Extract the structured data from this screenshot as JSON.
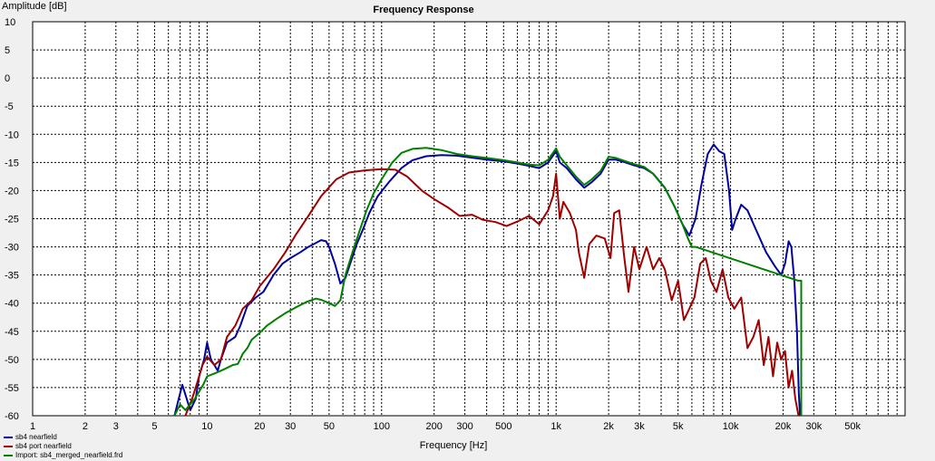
{
  "chart_data": {
    "type": "line",
    "title": "Frequency Response",
    "xlabel": "Frequency [Hz]",
    "ylabel": "Amplitude [dB]",
    "xscale": "log",
    "xlim": [
      1,
      100000
    ],
    "ylim": [
      -60,
      10
    ],
    "grid": true,
    "legend_position": "bottom-left",
    "x_ticks": [
      {
        "v": 1,
        "label": "1"
      },
      {
        "v": 2,
        "label": "2"
      },
      {
        "v": 3,
        "label": "3"
      },
      {
        "v": 5,
        "label": "5"
      },
      {
        "v": 10,
        "label": "10"
      },
      {
        "v": 20,
        "label": "20"
      },
      {
        "v": 30,
        "label": "30"
      },
      {
        "v": 50,
        "label": "50"
      },
      {
        "v": 100,
        "label": "100"
      },
      {
        "v": 200,
        "label": "200"
      },
      {
        "v": 300,
        "label": "300"
      },
      {
        "v": 500,
        "label": "500"
      },
      {
        "v": 1000,
        "label": "1k"
      },
      {
        "v": 2000,
        "label": "2k"
      },
      {
        "v": 3000,
        "label": "3k"
      },
      {
        "v": 5000,
        "label": "5k"
      },
      {
        "v": 10000,
        "label": "10k"
      },
      {
        "v": 20000,
        "label": "20k"
      },
      {
        "v": 30000,
        "label": "30k"
      },
      {
        "v": 50000,
        "label": "50k"
      }
    ],
    "y_ticks": [
      10,
      5,
      0,
      -5,
      -10,
      -15,
      -20,
      -25,
      -30,
      -35,
      -40,
      -45,
      -50,
      -55,
      -60
    ],
    "series": [
      {
        "name": "sb4 nearfield",
        "color": "#0000a0",
        "points": [
          [
            6.5,
            -60
          ],
          [
            7.2,
            -54.5
          ],
          [
            8,
            -59
          ],
          [
            8.6,
            -57
          ],
          [
            9,
            -53
          ],
          [
            9.6,
            -50
          ],
          [
            10,
            -47
          ],
          [
            10.5,
            -50
          ],
          [
            11,
            -51
          ],
          [
            11.5,
            -52
          ],
          [
            12,
            -50
          ],
          [
            13,
            -47
          ],
          [
            14.5,
            -46
          ],
          [
            15.5,
            -44
          ],
          [
            17,
            -40.5
          ],
          [
            19,
            -39
          ],
          [
            21,
            -38
          ],
          [
            24,
            -35
          ],
          [
            27,
            -33
          ],
          [
            30,
            -32
          ],
          [
            34,
            -31
          ],
          [
            38,
            -30
          ],
          [
            42,
            -29.3
          ],
          [
            45,
            -28.8
          ],
          [
            48,
            -29
          ],
          [
            50,
            -30
          ],
          [
            54,
            -33
          ],
          [
            58,
            -36.5
          ],
          [
            62,
            -35.5
          ],
          [
            66,
            -33
          ],
          [
            72,
            -29.5
          ],
          [
            78,
            -27
          ],
          [
            85,
            -24
          ],
          [
            95,
            -21
          ],
          [
            110,
            -18.5
          ],
          [
            130,
            -16
          ],
          [
            150,
            -14.6
          ],
          [
            180,
            -13.9
          ],
          [
            220,
            -13.7
          ],
          [
            270,
            -13.8
          ],
          [
            320,
            -14.1
          ],
          [
            400,
            -14.5
          ],
          [
            500,
            -14.8
          ],
          [
            600,
            -15.2
          ],
          [
            700,
            -15.6
          ],
          [
            800,
            -16
          ],
          [
            900,
            -15
          ],
          [
            1000,
            -13
          ],
          [
            1050,
            -15
          ],
          [
            1150,
            -16
          ],
          [
            1300,
            -18
          ],
          [
            1450,
            -19.5
          ],
          [
            1600,
            -18.5
          ],
          [
            1800,
            -17
          ],
          [
            2000,
            -14.5
          ],
          [
            2200,
            -14.5
          ],
          [
            2500,
            -15
          ],
          [
            2800,
            -15.5
          ],
          [
            3200,
            -16
          ],
          [
            3600,
            -17
          ],
          [
            4200,
            -19.5
          ],
          [
            4800,
            -23
          ],
          [
            5300,
            -26
          ],
          [
            5800,
            -28
          ],
          [
            6300,
            -25
          ],
          [
            6800,
            -19
          ],
          [
            7400,
            -13.5
          ],
          [
            8000,
            -11.8
          ],
          [
            8600,
            -13
          ],
          [
            9200,
            -13.5
          ],
          [
            9800,
            -20
          ],
          [
            10200,
            -27
          ],
          [
            10700,
            -25
          ],
          [
            11500,
            -22.5
          ],
          [
            12500,
            -23.5
          ],
          [
            14000,
            -27
          ],
          [
            16000,
            -31
          ],
          [
            18000,
            -33.5
          ],
          [
            19500,
            -35
          ],
          [
            20500,
            -33
          ],
          [
            21500,
            -29
          ],
          [
            22300,
            -30
          ],
          [
            23200,
            -36
          ],
          [
            24000,
            -45
          ],
          [
            24600,
            -56
          ],
          [
            25000,
            -60
          ]
        ]
      },
      {
        "name": "sb4 port nearfield",
        "color": "#a00000",
        "points": [
          [
            7.5,
            -60
          ],
          [
            8.2,
            -57
          ],
          [
            8.8,
            -54
          ],
          [
            9.4,
            -51
          ],
          [
            10,
            -49.5
          ],
          [
            11,
            -51
          ],
          [
            12,
            -50
          ],
          [
            13,
            -46
          ],
          [
            14.5,
            -44
          ],
          [
            16,
            -41
          ],
          [
            18,
            -39.5
          ],
          [
            20,
            -37
          ],
          [
            24,
            -34
          ],
          [
            28,
            -31
          ],
          [
            32,
            -28
          ],
          [
            38,
            -24.5
          ],
          [
            45,
            -21
          ],
          [
            55,
            -18
          ],
          [
            65,
            -16.8
          ],
          [
            80,
            -16.4
          ],
          [
            100,
            -16.2
          ],
          [
            120,
            -16.3
          ],
          [
            140,
            -17.5
          ],
          [
            170,
            -20
          ],
          [
            200,
            -21.5
          ],
          [
            240,
            -23
          ],
          [
            280,
            -24.5
          ],
          [
            330,
            -24.3
          ],
          [
            380,
            -25.2
          ],
          [
            450,
            -25.6
          ],
          [
            520,
            -26.3
          ],
          [
            600,
            -25.5
          ],
          [
            700,
            -24.5
          ],
          [
            800,
            -26
          ],
          [
            900,
            -23.5
          ],
          [
            960,
            -21
          ],
          [
            1000,
            -17
          ],
          [
            1050,
            -25
          ],
          [
            1100,
            -22
          ],
          [
            1200,
            -24
          ],
          [
            1300,
            -27
          ],
          [
            1350,
            -31
          ],
          [
            1450,
            -35.5
          ],
          [
            1550,
            -29.5
          ],
          [
            1700,
            -28
          ],
          [
            1900,
            -28.5
          ],
          [
            2050,
            -32
          ],
          [
            2150,
            -24
          ],
          [
            2300,
            -23.5
          ],
          [
            2450,
            -31.5
          ],
          [
            2600,
            -38
          ],
          [
            2800,
            -30
          ],
          [
            3000,
            -34
          ],
          [
            3300,
            -30
          ],
          [
            3600,
            -34
          ],
          [
            3900,
            -32
          ],
          [
            4200,
            -34
          ],
          [
            4600,
            -39.5
          ],
          [
            5000,
            -36
          ],
          [
            5400,
            -43
          ],
          [
            5800,
            -41
          ],
          [
            6200,
            -39
          ],
          [
            6700,
            -33
          ],
          [
            7200,
            -32
          ],
          [
            7700,
            -36
          ],
          [
            8300,
            -38
          ],
          [
            9000,
            -34
          ],
          [
            9700,
            -39
          ],
          [
            10500,
            -41
          ],
          [
            11500,
            -39
          ],
          [
            12500,
            -48
          ],
          [
            13500,
            -46
          ],
          [
            14500,
            -43
          ],
          [
            15500,
            -51
          ],
          [
            16500,
            -46
          ],
          [
            17500,
            -53
          ],
          [
            18500,
            -47
          ],
          [
            19500,
            -50
          ],
          [
            20500,
            -48.5
          ],
          [
            21500,
            -55
          ],
          [
            22500,
            -52
          ],
          [
            23500,
            -57
          ],
          [
            24500,
            -60
          ]
        ]
      },
      {
        "name": "Import: sb4_merged_nearfield.frd",
        "color": "#008000",
        "points": [
          [
            6.5,
            -60
          ],
          [
            7,
            -58
          ],
          [
            7.5,
            -59
          ],
          [
            8.5,
            -57
          ],
          [
            9.5,
            -54.5
          ],
          [
            10,
            -53
          ],
          [
            11,
            -52.5
          ],
          [
            12,
            -52
          ],
          [
            13,
            -51.5
          ],
          [
            14,
            -51
          ],
          [
            15,
            -50.8
          ],
          [
            16,
            -49
          ],
          [
            17,
            -48
          ],
          [
            18,
            -46.5
          ],
          [
            20,
            -45.3
          ],
          [
            22,
            -44
          ],
          [
            25,
            -42.8
          ],
          [
            28,
            -41.8
          ],
          [
            32,
            -40.8
          ],
          [
            37,
            -39.8
          ],
          [
            42,
            -39.2
          ],
          [
            45,
            -39.4
          ],
          [
            50,
            -40
          ],
          [
            54,
            -40.5
          ],
          [
            58,
            -39.5
          ],
          [
            62,
            -35
          ],
          [
            68,
            -31
          ],
          [
            75,
            -27
          ],
          [
            82,
            -23.5
          ],
          [
            90,
            -20.5
          ],
          [
            100,
            -18
          ],
          [
            115,
            -15
          ],
          [
            130,
            -13.3
          ],
          [
            150,
            -12.6
          ],
          [
            180,
            -12.4
          ],
          [
            220,
            -12.8
          ],
          [
            270,
            -13.5
          ],
          [
            330,
            -13.9
          ],
          [
            400,
            -14.2
          ],
          [
            500,
            -14.6
          ],
          [
            600,
            -15
          ],
          [
            700,
            -15.4
          ],
          [
            800,
            -15.5
          ],
          [
            900,
            -14.5
          ],
          [
            1000,
            -12.5
          ],
          [
            1050,
            -14
          ],
          [
            1150,
            -15.5
          ],
          [
            1300,
            -17.5
          ],
          [
            1450,
            -19
          ],
          [
            1600,
            -18
          ],
          [
            1800,
            -16.5
          ],
          [
            2000,
            -14
          ],
          [
            2200,
            -14.2
          ],
          [
            2500,
            -14.8
          ],
          [
            2800,
            -15.3
          ],
          [
            3200,
            -15.8
          ],
          [
            3600,
            -17
          ],
          [
            4200,
            -19.5
          ],
          [
            4800,
            -23
          ],
          [
            5300,
            -26
          ],
          [
            5700,
            -28.5
          ],
          [
            6000,
            -30
          ],
          [
            6300,
            -30
          ],
          [
            24400,
            -36
          ],
          [
            25400,
            -36
          ],
          [
            25400,
            -60
          ]
        ]
      }
    ]
  }
}
